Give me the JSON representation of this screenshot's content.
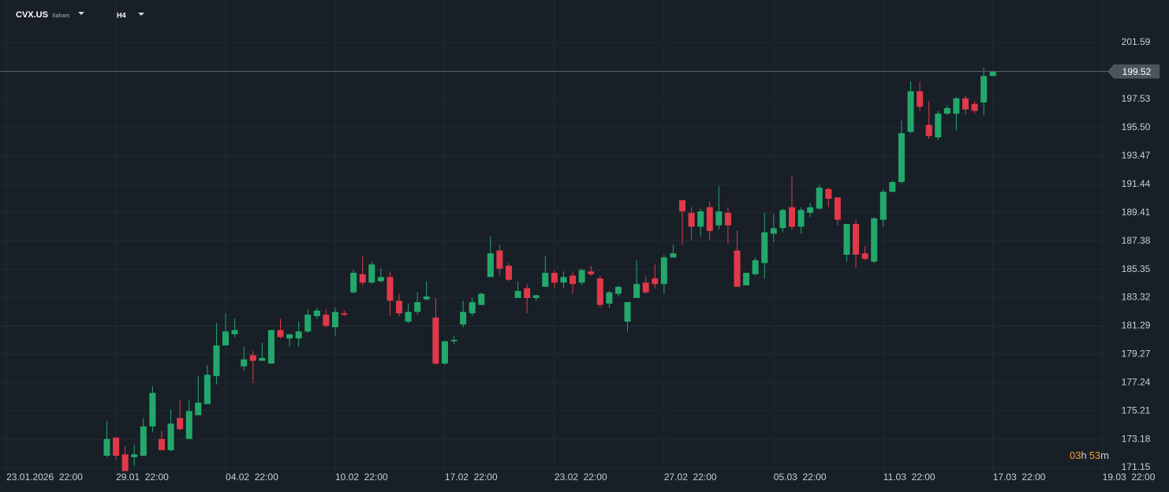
{
  "header": {
    "symbol": "CVX.US",
    "market": "Saham",
    "timeframe": "H4"
  },
  "countdown": [
    "03",
    "h",
    "53",
    "m"
  ],
  "chart_data": {
    "type": "candlestick",
    "up_color": "#23a86c",
    "down_color": "#e0394a",
    "x": [
      0,
      1,
      2,
      3,
      4,
      5,
      6,
      7,
      8,
      9,
      10,
      11,
      12,
      13,
      14,
      15,
      16,
      17,
      18,
      19,
      20,
      21,
      22,
      23,
      24,
      25,
      26,
      27,
      28,
      29,
      30,
      31,
      32,
      33,
      34,
      35,
      36,
      37,
      38,
      39,
      40,
      41,
      42,
      43,
      44,
      45,
      46,
      47,
      48,
      49,
      50,
      51,
      52,
      53,
      54,
      55,
      56,
      57,
      58,
      59,
      60,
      61,
      62,
      63,
      64,
      65,
      66,
      67,
      68,
      69,
      70,
      71,
      72,
      73,
      74,
      75,
      76,
      77,
      78,
      79,
      80,
      81,
      82,
      83,
      84,
      85,
      86,
      87,
      88,
      89,
      90,
      91,
      92,
      93,
      94,
      95,
      96,
      97
    ],
    "open": [
      172.0,
      173.3,
      172.1,
      171.9,
      172.0,
      174.1,
      173.2,
      172.4,
      174.7,
      173.2,
      174.9,
      175.7,
      177.7,
      179.9,
      180.7,
      178.4,
      179.2,
      178.8,
      178.6,
      181.0,
      180.4,
      180.4,
      180.9,
      182.0,
      182.1,
      181.2,
      182.2,
      183.7,
      185.0,
      184.4,
      184.5,
      184.8,
      183.1,
      181.6,
      182.3,
      183.2,
      181.9,
      178.6,
      180.2,
      181.4,
      182.2,
      182.8,
      184.8,
      186.7,
      185.6,
      183.3,
      184.0,
      183.3,
      184.1,
      185.1,
      184.4,
      184.9,
      184.4,
      185.2,
      184.7,
      182.9,
      183.6,
      181.6,
      183.3,
      184.4,
      184.7,
      184.3,
      186.2,
      190.3,
      189.4,
      188.4,
      189.8,
      188.5,
      189.4,
      186.7,
      184.2,
      185.0,
      185.8,
      187.9,
      188.3,
      189.8,
      188.4,
      189.4,
      189.7,
      191.1,
      190.5,
      186.4,
      188.6,
      186.5,
      185.9,
      188.9,
      190.9,
      191.6,
      195.2,
      198.1,
      195.7,
      194.8,
      196.5,
      196.5,
      197.6,
      197.2,
      197.3,
      199.2
    ],
    "high": [
      174.5,
      173.3,
      172.7,
      172.8,
      174.7,
      177.0,
      173.8,
      175.3,
      176.0,
      176.0,
      177.7,
      178.5,
      181.5,
      182.2,
      181.8,
      179.8,
      179.5,
      180.1,
      181.0,
      181.8,
      180.7,
      181.6,
      182.5,
      182.6,
      182.5,
      182.6,
      182.4,
      185.3,
      186.3,
      185.9,
      185.4,
      185.2,
      183.6,
      182.9,
      183.7,
      184.5,
      183.3,
      180.2,
      180.6,
      183.1,
      183.3,
      183.7,
      187.7,
      187.1,
      185.8,
      184.5,
      184.3,
      183.5,
      186.3,
      185.3,
      185.2,
      185.2,
      185.4,
      185.6,
      184.9,
      183.8,
      184.2,
      183.0,
      186.0,
      184.9,
      185.7,
      186.4,
      187.1,
      190.3,
      189.8,
      189.7,
      190.2,
      191.3,
      189.8,
      188.1,
      185.1,
      186.2,
      189.4,
      189.3,
      189.7,
      192.0,
      189.8,
      190.1,
      191.4,
      191.2,
      190.5,
      188.6,
      188.9,
      187.0,
      189.1,
      191.1,
      191.7,
      196.0,
      198.8,
      198.8,
      197.4,
      196.7,
      197.1,
      197.7,
      197.8,
      197.4,
      199.8,
      199.52
    ],
    "low": [
      171.9,
      171.7,
      170.9,
      171.3,
      172.0,
      173.7,
      172.4,
      172.3,
      173.8,
      173.2,
      174.9,
      175.7,
      177.1,
      179.9,
      180.5,
      178.1,
      177.2,
      178.8,
      178.6,
      180.4,
      179.8,
      179.8,
      180.8,
      181.8,
      181.2,
      180.6,
      182.0,
      183.6,
      184.2,
      184.3,
      184.4,
      182.0,
      182.0,
      181.5,
      182.1,
      183.1,
      178.5,
      178.5,
      180.0,
      181.2,
      182.0,
      182.8,
      184.8,
      184.9,
      184.5,
      183.3,
      182.2,
      183.1,
      184.1,
      184.0,
      184.0,
      183.6,
      184.2,
      184.9,
      182.6,
      182.6,
      183.4,
      180.9,
      183.3,
      183.6,
      184.0,
      183.6,
      186.2,
      187.1,
      187.4,
      187.7,
      187.4,
      188.2,
      187.2,
      184.1,
      184.2,
      184.9,
      184.7,
      187.3,
      188.0,
      188.2,
      187.9,
      189.1,
      189.6,
      189.8,
      188.5,
      185.9,
      185.5,
      186.0,
      185.8,
      188.4,
      190.9,
      191.5,
      195.1,
      196.7,
      194.7,
      194.6,
      196.4,
      195.3,
      196.4,
      196.5,
      196.4,
      199.2
    ],
    "close": [
      173.2,
      172.0,
      170.9,
      172.1,
      174.1,
      176.5,
      172.4,
      174.3,
      173.9,
      175.2,
      175.8,
      177.8,
      179.9,
      180.9,
      181.0,
      178.9,
      178.8,
      179.0,
      181.0,
      180.5,
      180.7,
      180.9,
      182.1,
      182.4,
      181.3,
      182.3,
      182.1,
      185.1,
      184.4,
      185.7,
      184.8,
      183.1,
      182.2,
      182.3,
      183.0,
      183.4,
      178.6,
      180.2,
      180.3,
      182.3,
      183.0,
      183.6,
      186.5,
      185.4,
      184.6,
      183.8,
      183.3,
      183.5,
      185.1,
      184.4,
      184.8,
      184.3,
      185.3,
      185.0,
      182.8,
      183.7,
      184.1,
      183.0,
      184.3,
      183.7,
      184.3,
      186.2,
      186.5,
      189.5,
      188.4,
      189.5,
      188.1,
      189.5,
      188.5,
      184.1,
      185.1,
      186.0,
      188.0,
      188.3,
      189.6,
      188.4,
      189.6,
      189.8,
      191.2,
      190.4,
      188.9,
      188.6,
      186.4,
      186.1,
      189.0,
      190.9,
      191.6,
      195.1,
      198.1,
      197.0,
      194.9,
      196.5,
      196.9,
      197.6,
      196.8,
      196.7,
      199.2,
      199.52
    ],
    "last_price": 199.52,
    "xlim": [
      -11.7,
      109.2
    ],
    "ylim": [
      170.87,
      204.64
    ],
    "xticks": [
      {
        "value": -11,
        "label": "23.01.2026  22:00"
      },
      {
        "value": 1,
        "label": "29.01  22:00"
      },
      {
        "value": 13,
        "label": "04.02  22:00"
      },
      {
        "value": 25,
        "label": "10.02  22:00"
      },
      {
        "value": 37,
        "label": "17.02  22:00"
      },
      {
        "value": 49,
        "label": "23.02  22:00"
      },
      {
        "value": 61,
        "label": "27.02  22:00"
      },
      {
        "value": 73,
        "label": "05.03  22:00"
      },
      {
        "value": 85,
        "label": "11.03  22:00"
      },
      {
        "value": 97,
        "label": "17.03  22:00"
      },
      {
        "value": 109,
        "label": "19.03  22:00"
      }
    ],
    "yticks": [
      201.59,
      197.53,
      {
        "value": 195.5,
        "label": "195.50"
      },
      193.47,
      191.44,
      189.41,
      187.38,
      185.35,
      183.32,
      181.29,
      179.27,
      177.24,
      175.21,
      173.18,
      171.15
    ],
    "grid": true
  }
}
